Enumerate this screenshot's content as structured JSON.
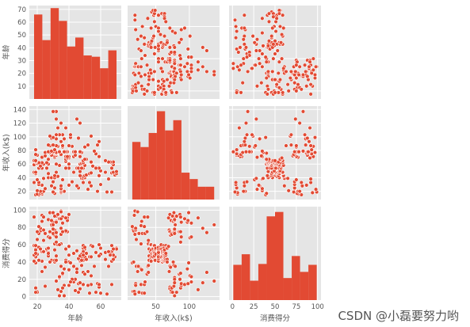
{
  "chart_data": {
    "type": "pairplot",
    "variables": [
      "年龄",
      "年收入(k$)",
      "消费得分"
    ],
    "style": {
      "panel_bg": "#E5E5E5",
      "grid_color": "#FFFFFF",
      "mark_color": "#E24A33",
      "marker_edge": "#FFFFFF",
      "text_color": "#555555",
      "grid": true
    },
    "axes": [
      {
        "label": "年龄",
        "lim": [
          15,
          73
        ],
        "ticks": [
          20,
          40,
          60
        ]
      },
      {
        "label": "年收入(k$)",
        "lim": [
          8,
          145
        ],
        "ticks": [
          20,
          40,
          60,
          80,
          100,
          120,
          140
        ],
        "x_ticks": [
          50,
          100
        ]
      },
      {
        "label": "消费得分",
        "lim": [
          -4,
          104
        ],
        "ticks": [
          0,
          20,
          40,
          60,
          80,
          100
        ],
        "x_ticks": [
          0,
          25,
          50,
          75,
          100
        ]
      }
    ],
    "histograms": [
      {
        "variable": "年龄",
        "ylim": [
          0,
          73
        ],
        "yticks": [
          10,
          20,
          30,
          40,
          50,
          60,
          70
        ],
        "edges": [
          18,
          23.2,
          28.4,
          33.6,
          38.8,
          44,
          49.2,
          54.4,
          59.6,
          64.8,
          70
        ],
        "counts": [
          66,
          46,
          71,
          61,
          41,
          48,
          34,
          33,
          24,
          38
        ]
      },
      {
        "variable": "年收入(k$)",
        "ylim": [
          0,
          146
        ],
        "yticks": [],
        "edges": [
          15,
          27.2,
          39.4,
          51.6,
          63.8,
          76,
          88.2,
          100.4,
          112.6,
          124.8,
          137
        ],
        "counts": [
          90,
          82,
          104,
          138,
          108,
          124,
          42,
          32,
          20,
          20
        ]
      },
      {
        "variable": "消费得分",
        "ylim": [
          0,
          106
        ],
        "yticks": [],
        "edges": [
          1,
          10.8,
          20.6,
          30.4,
          40.2,
          50,
          59.8,
          69.6,
          79.4,
          89.2,
          99
        ],
        "counts": [
          40,
          52,
          22,
          41,
          95,
          100,
          25,
          50,
          32,
          40
        ]
      }
    ],
    "scatter": [
      [
        19,
        15,
        39
      ],
      [
        21,
        15,
        81
      ],
      [
        20,
        16,
        6
      ],
      [
        23,
        16,
        77
      ],
      [
        31,
        17,
        40
      ],
      [
        22,
        17,
        76
      ],
      [
        35,
        18,
        6
      ],
      [
        23,
        18,
        94
      ],
      [
        64,
        19,
        3
      ],
      [
        30,
        19,
        72
      ],
      [
        67,
        19,
        14
      ],
      [
        35,
        19,
        99
      ],
      [
        58,
        20,
        15
      ],
      [
        24,
        20,
        77
      ],
      [
        37,
        20,
        13
      ],
      [
        22,
        20,
        79
      ],
      [
        35,
        21,
        35
      ],
      [
        20,
        21,
        66
      ],
      [
        52,
        23,
        29
      ],
      [
        35,
        23,
        98
      ],
      [
        35,
        24,
        35
      ],
      [
        25,
        24,
        73
      ],
      [
        46,
        25,
        5
      ],
      [
        31,
        25,
        73
      ],
      [
        54,
        28,
        14
      ],
      [
        29,
        28,
        82
      ],
      [
        45,
        28,
        32
      ],
      [
        35,
        28,
        61
      ],
      [
        40,
        29,
        31
      ],
      [
        23,
        29,
        87
      ],
      [
        60,
        30,
        4
      ],
      [
        21,
        30,
        73
      ],
      [
        53,
        33,
        4
      ],
      [
        18,
        33,
        92
      ],
      [
        49,
        33,
        14
      ],
      [
        21,
        33,
        81
      ],
      [
        42,
        34,
        17
      ],
      [
        30,
        34,
        73
      ],
      [
        36,
        37,
        26
      ],
      [
        20,
        37,
        75
      ],
      [
        65,
        38,
        35
      ],
      [
        24,
        38,
        92
      ],
      [
        48,
        39,
        36
      ],
      [
        31,
        39,
        61
      ],
      [
        49,
        39,
        28
      ],
      [
        24,
        39,
        65
      ],
      [
        50,
        40,
        55
      ],
      [
        27,
        40,
        47
      ],
      [
        29,
        40,
        42
      ],
      [
        31,
        40,
        42
      ],
      [
        49,
        42,
        52
      ],
      [
        33,
        42,
        60
      ],
      [
        31,
        43,
        54
      ],
      [
        59,
        43,
        60
      ],
      [
        50,
        43,
        45
      ],
      [
        47,
        43,
        41
      ],
      [
        51,
        44,
        50
      ],
      [
        69,
        44,
        46
      ],
      [
        27,
        46,
        51
      ],
      [
        53,
        46,
        46
      ],
      [
        70,
        46,
        56
      ],
      [
        19,
        46,
        55
      ],
      [
        67,
        47,
        52
      ],
      [
        54,
        47,
        59
      ],
      [
        63,
        48,
        51
      ],
      [
        18,
        48,
        59
      ],
      [
        43,
        48,
        50
      ],
      [
        68,
        48,
        48
      ],
      [
        19,
        48,
        59
      ],
      [
        32,
        48,
        47
      ],
      [
        70,
        49,
        55
      ],
      [
        47,
        49,
        42
      ],
      [
        60,
        50,
        49
      ],
      [
        60,
        50,
        56
      ],
      [
        59,
        54,
        47
      ],
      [
        26,
        54,
        54
      ],
      [
        45,
        54,
        53
      ],
      [
        40,
        54,
        48
      ],
      [
        23,
        54,
        52
      ],
      [
        49,
        54,
        42
      ],
      [
        57,
        54,
        51
      ],
      [
        38,
        54,
        55
      ],
      [
        67,
        54,
        41
      ],
      [
        46,
        54,
        44
      ],
      [
        21,
        54,
        57
      ],
      [
        48,
        54,
        46
      ],
      [
        55,
        57,
        58
      ],
      [
        22,
        57,
        55
      ],
      [
        34,
        58,
        60
      ],
      [
        50,
        58,
        46
      ],
      [
        68,
        59,
        55
      ],
      [
        18,
        59,
        41
      ],
      [
        48,
        60,
        49
      ],
      [
        40,
        60,
        40
      ],
      [
        32,
        60,
        42
      ],
      [
        24,
        60,
        52
      ],
      [
        47,
        60,
        47
      ],
      [
        27,
        60,
        50
      ],
      [
        48,
        61,
        42
      ],
      [
        20,
        61,
        49
      ],
      [
        23,
        62,
        41
      ],
      [
        49,
        62,
        48
      ],
      [
        67,
        62,
        59
      ],
      [
        26,
        62,
        55
      ],
      [
        49,
        62,
        56
      ],
      [
        21,
        62,
        42
      ],
      [
        66,
        63,
        50
      ],
      [
        54,
        63,
        46
      ],
      [
        68,
        63,
        43
      ],
      [
        66,
        63,
        48
      ],
      [
        65,
        63,
        52
      ],
      [
        19,
        63,
        54
      ],
      [
        38,
        64,
        42
      ],
      [
        19,
        64,
        46
      ],
      [
        18,
        65,
        48
      ],
      [
        19,
        65,
        50
      ],
      [
        63,
        65,
        43
      ],
      [
        49,
        65,
        59
      ],
      [
        51,
        67,
        43
      ],
      [
        50,
        67,
        57
      ],
      [
        27,
        67,
        56
      ],
      [
        38,
        67,
        40
      ],
      [
        40,
        69,
        58
      ],
      [
        39,
        69,
        91
      ],
      [
        23,
        70,
        29
      ],
      [
        31,
        70,
        77
      ],
      [
        43,
        71,
        35
      ],
      [
        40,
        71,
        95
      ],
      [
        59,
        71,
        11
      ],
      [
        38,
        71,
        75
      ],
      [
        47,
        71,
        9
      ],
      [
        39,
        71,
        75
      ],
      [
        25,
        72,
        34
      ],
      [
        31,
        72,
        71
      ],
      [
        20,
        73,
        5
      ],
      [
        29,
        73,
        88
      ],
      [
        44,
        73,
        7
      ],
      [
        32,
        73,
        73
      ],
      [
        19,
        74,
        10
      ],
      [
        35,
        74,
        72
      ],
      [
        57,
        75,
        5
      ],
      [
        32,
        75,
        93
      ],
      [
        28,
        76,
        40
      ],
      [
        32,
        76,
        87
      ],
      [
        25,
        77,
        12
      ],
      [
        28,
        77,
        97
      ],
      [
        48,
        77,
        36
      ],
      [
        32,
        77,
        74
      ],
      [
        34,
        78,
        22
      ],
      [
        34,
        78,
        90
      ],
      [
        43,
        78,
        17
      ],
      [
        39,
        78,
        88
      ],
      [
        44,
        78,
        20
      ],
      [
        38,
        78,
        76
      ],
      [
        47,
        78,
        16
      ],
      [
        27,
        78,
        89
      ],
      [
        37,
        78,
        1
      ],
      [
        30,
        78,
        78
      ],
      [
        34,
        78,
        1
      ],
      [
        30,
        78,
        73
      ],
      [
        56,
        79,
        35
      ],
      [
        29,
        79,
        83
      ],
      [
        19,
        81,
        5
      ],
      [
        31,
        81,
        93
      ],
      [
        50,
        85,
        26
      ],
      [
        36,
        85,
        75
      ],
      [
        42,
        86,
        20
      ],
      [
        33,
        86,
        95
      ],
      [
        36,
        87,
        27
      ],
      [
        32,
        87,
        63
      ],
      [
        40,
        87,
        13
      ],
      [
        28,
        87,
        75
      ],
      [
        36,
        87,
        10
      ],
      [
        36,
        87,
        92
      ],
      [
        52,
        88,
        13
      ],
      [
        30,
        88,
        86
      ],
      [
        58,
        88,
        15
      ],
      [
        27,
        88,
        69
      ],
      [
        59,
        93,
        14
      ],
      [
        35,
        93,
        90
      ],
      [
        37,
        97,
        32
      ],
      [
        32,
        97,
        86
      ],
      [
        46,
        98,
        15
      ],
      [
        29,
        98,
        88
      ],
      [
        41,
        99,
        39
      ],
      [
        30,
        99,
        97
      ],
      [
        54,
        101,
        24
      ],
      [
        28,
        101,
        68
      ],
      [
        41,
        103,
        17
      ],
      [
        36,
        103,
        85
      ],
      [
        34,
        103,
        23
      ],
      [
        32,
        103,
        69
      ],
      [
        33,
        113,
        8
      ],
      [
        38,
        113,
        91
      ],
      [
        47,
        120,
        16
      ],
      [
        35,
        120,
        79
      ],
      [
        45,
        126,
        28
      ],
      [
        32,
        126,
        74
      ],
      [
        32,
        137,
        18
      ],
      [
        30,
        137,
        83
      ]
    ]
  },
  "watermark": "CSDN @小磊要努力哟"
}
